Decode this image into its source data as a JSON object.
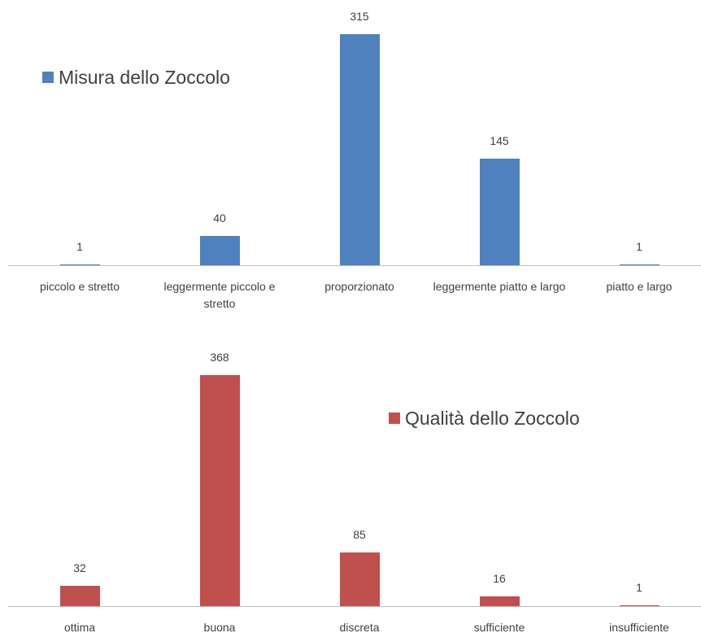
{
  "chart_data": [
    {
      "type": "bar",
      "categories": [
        "piccolo e stretto",
        "leggermente piccolo e stretto",
        "proporzionato",
        "leggermente piatto e largo",
        "piatto e largo"
      ],
      "series": [
        {
          "name": "Misura dello Zoccolo",
          "color": "#4e81bd",
          "values": [
            1,
            40,
            315,
            145,
            1
          ]
        }
      ],
      "legend": "upper left"
    },
    {
      "type": "bar",
      "categories": [
        "ottima",
        "buona",
        "discreta",
        "sufficiente",
        "insufficiente"
      ],
      "series": [
        {
          "name": "Qualità dello Zoccolo",
          "color": "#c0504d",
          "values": [
            32,
            368,
            85,
            16,
            1
          ]
        }
      ],
      "legend": "upper right"
    }
  ]
}
